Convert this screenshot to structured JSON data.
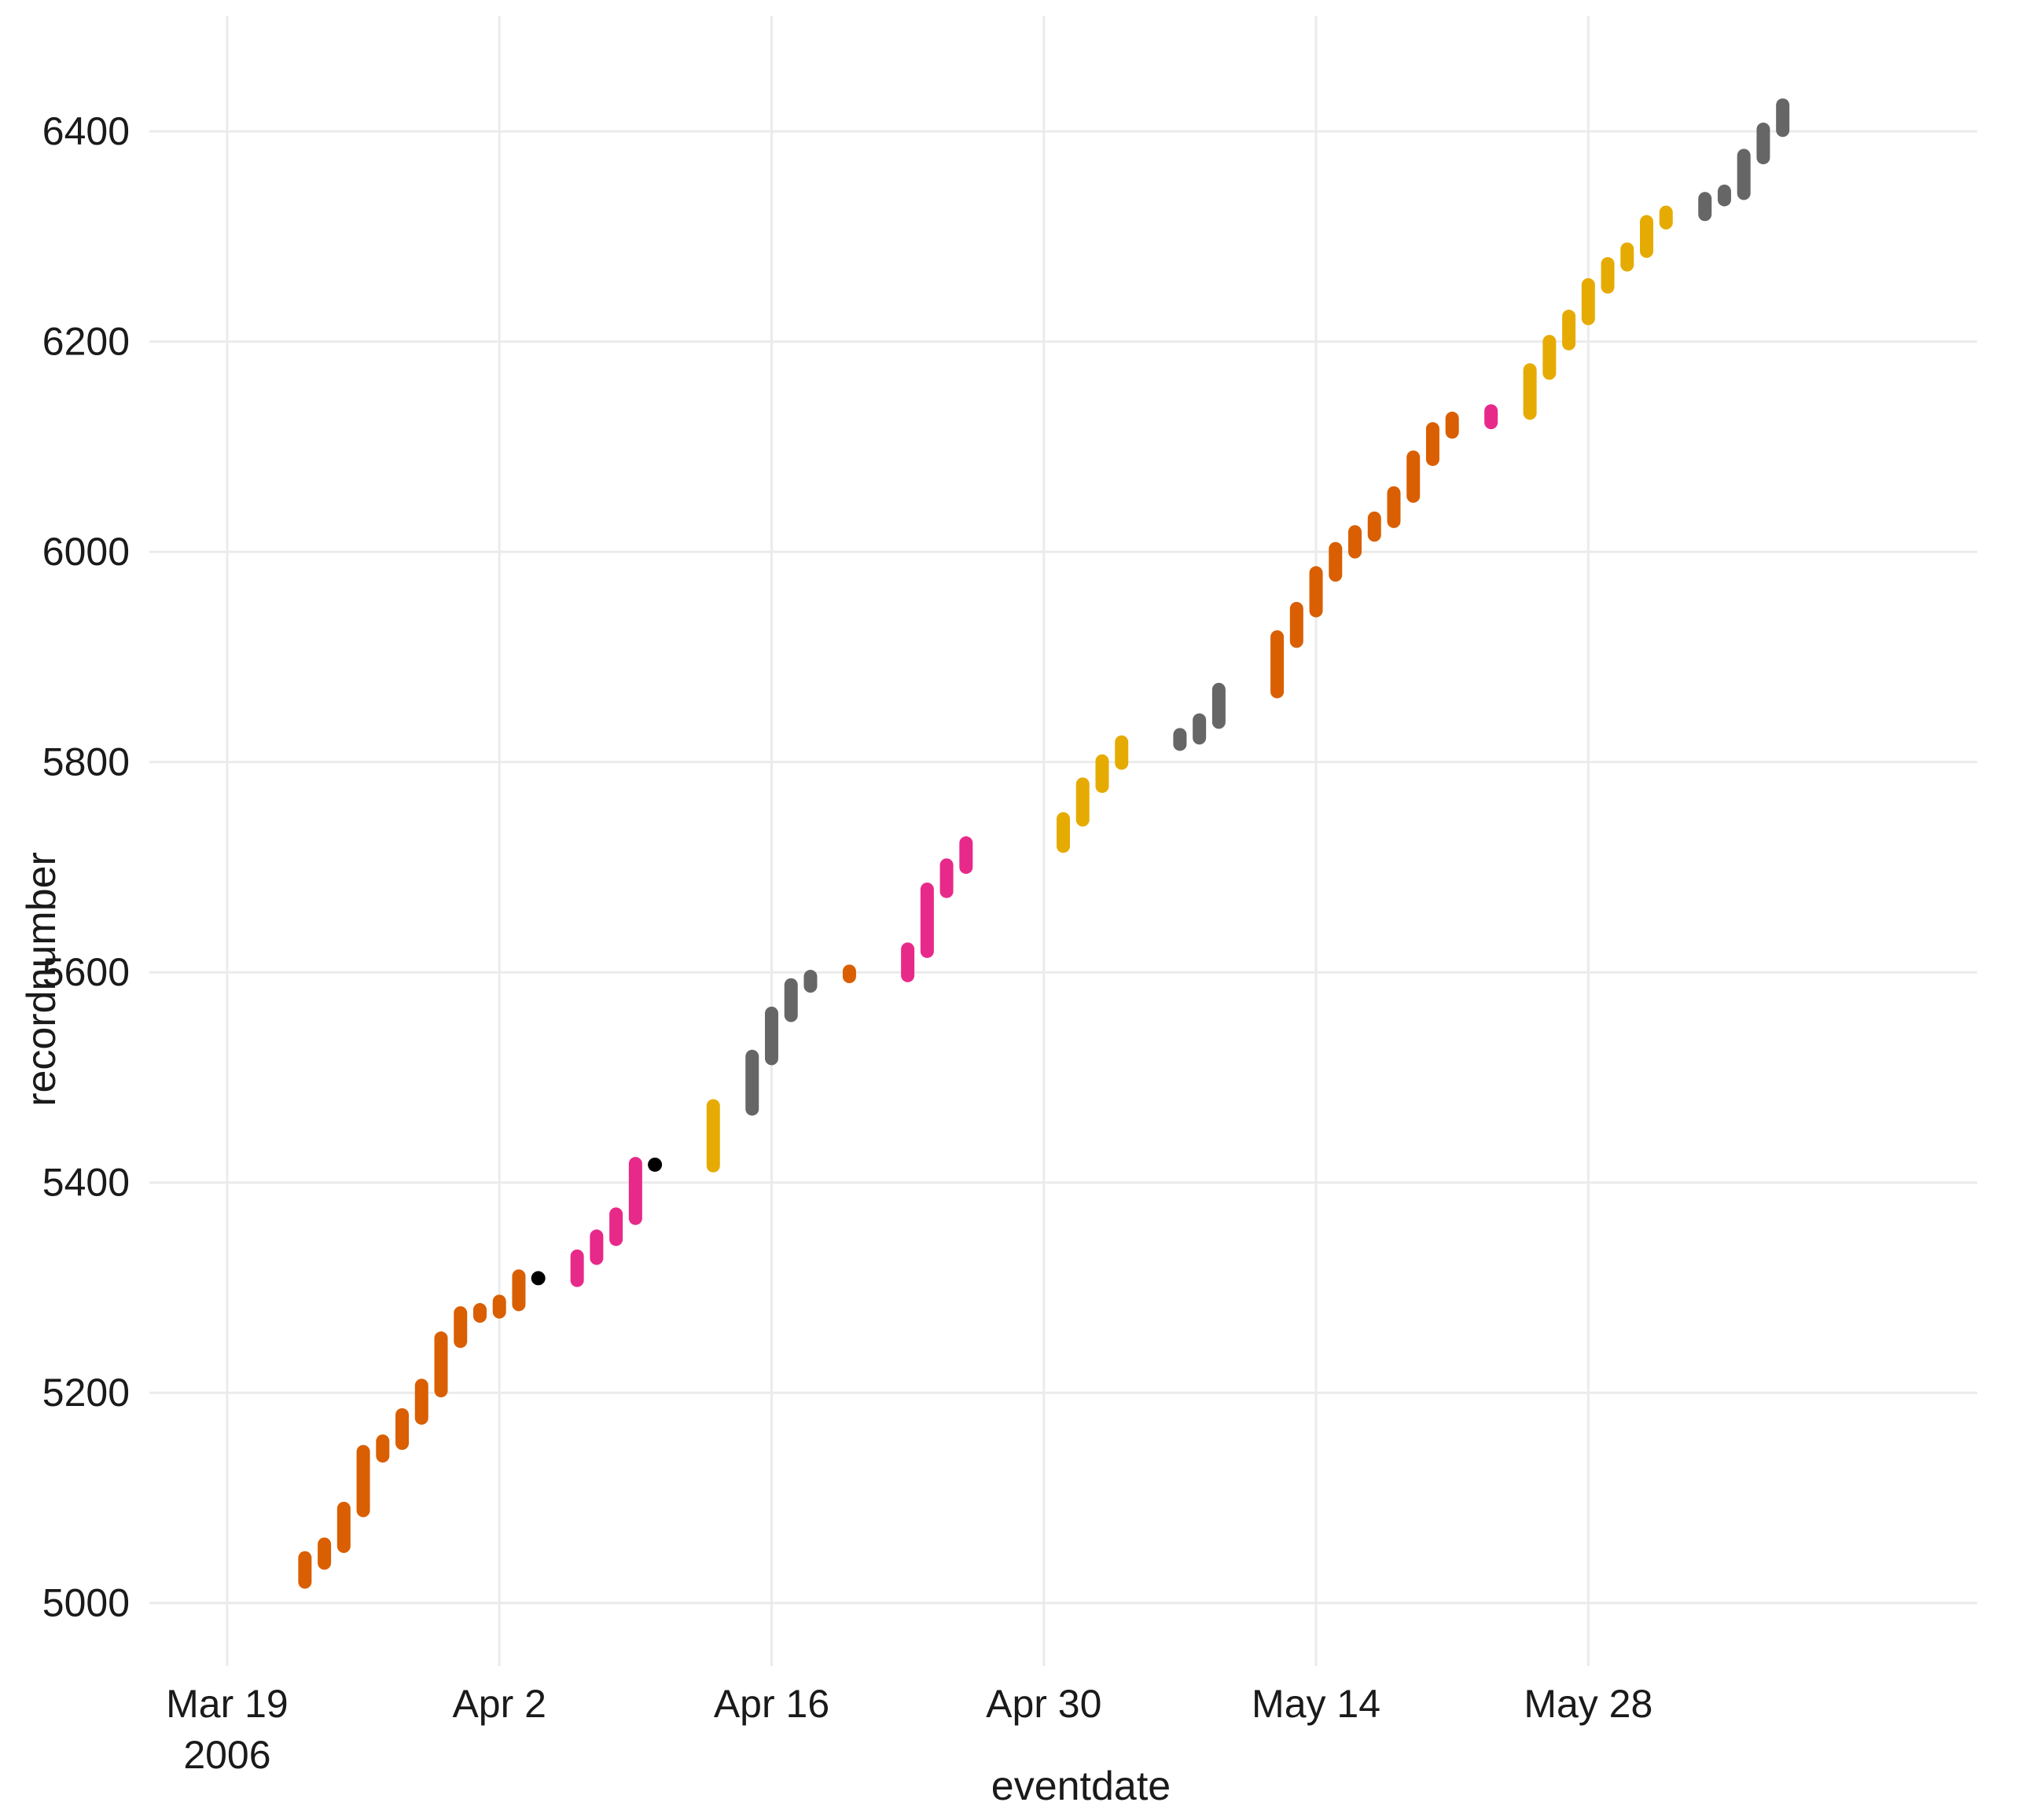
{
  "chart_data": {
    "type": "range-segments",
    "xlabel": "eventdate",
    "ylabel": "recordnumber",
    "x_axis": {
      "type": "date",
      "range": [
        "2006-03-15",
        "2006-06-17"
      ],
      "ticks": [
        {
          "date": "2006-03-19",
          "label": "Mar 19",
          "sublabel": "2006"
        },
        {
          "date": "2006-04-02",
          "label": "Apr 2",
          "sublabel": ""
        },
        {
          "date": "2006-04-16",
          "label": "Apr 16",
          "sublabel": ""
        },
        {
          "date": "2006-04-30",
          "label": "Apr 30",
          "sublabel": ""
        },
        {
          "date": "2006-05-14",
          "label": "May 14",
          "sublabel": ""
        },
        {
          "date": "2006-05-28",
          "label": "May 28",
          "sublabel": ""
        }
      ]
    },
    "y_axis": {
      "range": [
        4940,
        6510
      ],
      "ticks": [
        5000,
        5200,
        5400,
        5600,
        5800,
        6000,
        6200,
        6400
      ]
    },
    "grid": true,
    "legend": "none",
    "colors": {
      "orange": "#d95f02",
      "pink": "#e7298a",
      "gold": "#e6ab02",
      "gray": "#666666",
      "black": "#000000"
    },
    "segments": [
      {
        "date": "2006-03-23",
        "y_min": 5020,
        "y_max": 5043,
        "color": "orange"
      },
      {
        "date": "2006-03-24",
        "y_min": 5038,
        "y_max": 5056,
        "color": "orange"
      },
      {
        "date": "2006-03-25",
        "y_min": 5054,
        "y_max": 5090,
        "color": "orange"
      },
      {
        "date": "2006-03-26",
        "y_min": 5088,
        "y_max": 5144,
        "color": "orange"
      },
      {
        "date": "2006-03-27",
        "y_min": 5140,
        "y_max": 5154,
        "color": "orange"
      },
      {
        "date": "2006-03-28",
        "y_min": 5152,
        "y_max": 5179,
        "color": "orange"
      },
      {
        "date": "2006-03-29",
        "y_min": 5176,
        "y_max": 5207,
        "color": "orange"
      },
      {
        "date": "2006-03-30",
        "y_min": 5202,
        "y_max": 5252,
        "color": "orange"
      },
      {
        "date": "2006-03-31",
        "y_min": 5249,
        "y_max": 5276,
        "color": "orange"
      },
      {
        "date": "2006-04-01",
        "y_min": 5273,
        "y_max": 5279,
        "color": "orange"
      },
      {
        "date": "2006-04-02",
        "y_min": 5277,
        "y_max": 5287,
        "color": "orange"
      },
      {
        "date": "2006-04-03",
        "y_min": 5284,
        "y_max": 5311,
        "color": "orange"
      },
      {
        "date": "2006-04-04",
        "y_min": 5309,
        "y_max": 5309,
        "color": "black"
      },
      {
        "date": "2006-04-06",
        "y_min": 5307,
        "y_max": 5330,
        "color": "pink"
      },
      {
        "date": "2006-04-07",
        "y_min": 5328,
        "y_max": 5349,
        "color": "pink"
      },
      {
        "date": "2006-04-08",
        "y_min": 5346,
        "y_max": 5370,
        "color": "pink"
      },
      {
        "date": "2006-04-09",
        "y_min": 5366,
        "y_max": 5418,
        "color": "pink"
      },
      {
        "date": "2006-04-10",
        "y_min": 5417,
        "y_max": 5417,
        "color": "black"
      },
      {
        "date": "2006-04-13",
        "y_min": 5416,
        "y_max": 5473,
        "color": "gold"
      },
      {
        "date": "2006-04-15",
        "y_min": 5470,
        "y_max": 5520,
        "color": "gray"
      },
      {
        "date": "2006-04-16",
        "y_min": 5518,
        "y_max": 5561,
        "color": "gray"
      },
      {
        "date": "2006-04-17",
        "y_min": 5559,
        "y_max": 5588,
        "color": "gray"
      },
      {
        "date": "2006-04-18",
        "y_min": 5587,
        "y_max": 5596,
        "color": "gray"
      },
      {
        "date": "2006-04-20",
        "y_min": 5596,
        "y_max": 5601,
        "color": "orange"
      },
      {
        "date": "2006-04-23",
        "y_min": 5597,
        "y_max": 5622,
        "color": "pink"
      },
      {
        "date": "2006-04-24",
        "y_min": 5620,
        "y_max": 5679,
        "color": "pink"
      },
      {
        "date": "2006-04-25",
        "y_min": 5677,
        "y_max": 5702,
        "color": "pink"
      },
      {
        "date": "2006-04-26",
        "y_min": 5700,
        "y_max": 5723,
        "color": "pink"
      },
      {
        "date": "2006-05-01",
        "y_min": 5720,
        "y_max": 5746,
        "color": "gold"
      },
      {
        "date": "2006-05-02",
        "y_min": 5745,
        "y_max": 5779,
        "color": "gold"
      },
      {
        "date": "2006-05-03",
        "y_min": 5777,
        "y_max": 5801,
        "color": "gold"
      },
      {
        "date": "2006-05-04",
        "y_min": 5799,
        "y_max": 5819,
        "color": "gold"
      },
      {
        "date": "2006-05-07",
        "y_min": 5817,
        "y_max": 5826,
        "color": "gray"
      },
      {
        "date": "2006-05-08",
        "y_min": 5823,
        "y_max": 5840,
        "color": "gray"
      },
      {
        "date": "2006-05-09",
        "y_min": 5838,
        "y_max": 5869,
        "color": "gray"
      },
      {
        "date": "2006-05-12",
        "y_min": 5867,
        "y_max": 5919,
        "color": "orange"
      },
      {
        "date": "2006-05-13",
        "y_min": 5915,
        "y_max": 5946,
        "color": "orange"
      },
      {
        "date": "2006-05-14",
        "y_min": 5944,
        "y_max": 5980,
        "color": "orange"
      },
      {
        "date": "2006-05-15",
        "y_min": 5978,
        "y_max": 6003,
        "color": "orange"
      },
      {
        "date": "2006-05-16",
        "y_min": 6000,
        "y_max": 6019,
        "color": "orange"
      },
      {
        "date": "2006-05-17",
        "y_min": 6016,
        "y_max": 6032,
        "color": "orange"
      },
      {
        "date": "2006-05-18",
        "y_min": 6029,
        "y_max": 6056,
        "color": "orange"
      },
      {
        "date": "2006-05-19",
        "y_min": 6053,
        "y_max": 6090,
        "color": "orange"
      },
      {
        "date": "2006-05-20",
        "y_min": 6088,
        "y_max": 6117,
        "color": "orange"
      },
      {
        "date": "2006-05-21",
        "y_min": 6114,
        "y_max": 6127,
        "color": "orange"
      },
      {
        "date": "2006-05-23",
        "y_min": 6123,
        "y_max": 6134,
        "color": "pink"
      },
      {
        "date": "2006-05-25",
        "y_min": 6132,
        "y_max": 6173,
        "color": "gold"
      },
      {
        "date": "2006-05-26",
        "y_min": 6170,
        "y_max": 6200,
        "color": "gold"
      },
      {
        "date": "2006-05-27",
        "y_min": 6198,
        "y_max": 6224,
        "color": "gold"
      },
      {
        "date": "2006-05-28",
        "y_min": 6222,
        "y_max": 6254,
        "color": "gold"
      },
      {
        "date": "2006-05-29",
        "y_min": 6252,
        "y_max": 6274,
        "color": "gold"
      },
      {
        "date": "2006-05-30",
        "y_min": 6273,
        "y_max": 6288,
        "color": "gold"
      },
      {
        "date": "2006-05-31",
        "y_min": 6286,
        "y_max": 6314,
        "color": "gold"
      },
      {
        "date": "2006-06-01",
        "y_min": 6313,
        "y_max": 6323,
        "color": "gold"
      },
      {
        "date": "2006-06-03",
        "y_min": 6321,
        "y_max": 6336,
        "color": "gray"
      },
      {
        "date": "2006-06-04",
        "y_min": 6335,
        "y_max": 6343,
        "color": "gray"
      },
      {
        "date": "2006-06-05",
        "y_min": 6341,
        "y_max": 6377,
        "color": "gray"
      },
      {
        "date": "2006-06-06",
        "y_min": 6375,
        "y_max": 6402,
        "color": "gray"
      },
      {
        "date": "2006-06-07",
        "y_min": 6401,
        "y_max": 6425,
        "color": "gray"
      }
    ]
  }
}
